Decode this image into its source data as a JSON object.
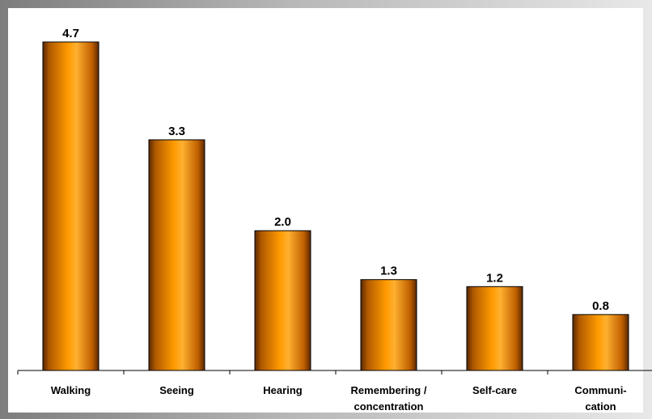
{
  "chart_data": {
    "type": "bar",
    "categories": [
      "Walking",
      "Seeing",
      "Hearing",
      "Remembering / concentration",
      "Self-care",
      "Communi-cation"
    ],
    "category_lines": [
      [
        "Walking"
      ],
      [
        "Seeing"
      ],
      [
        "Hearing"
      ],
      [
        "Remembering /",
        "concentration"
      ],
      [
        "Self-care"
      ],
      [
        "Communi-",
        "cation"
      ]
    ],
    "values": [
      4.7,
      3.3,
      2.0,
      1.3,
      1.2,
      0.8
    ],
    "data_labels": [
      "4.7",
      "3.3",
      "2.0",
      "1.3",
      "1.2",
      "0.8"
    ],
    "title": "",
    "xlabel": "",
    "ylabel": "",
    "ylim": [
      0,
      5.4
    ],
    "grid": false,
    "legend": "none",
    "bar_gradient": [
      "#5a2800",
      "#b05a00",
      "#ff9a00",
      "#ffb030",
      "#c06000",
      "#5a2800"
    ],
    "bar_outline_color": "#000000",
    "plot_background": "#ffffff",
    "frame_gradient": [
      "#7d7d7d",
      "#e8e8e8"
    ]
  }
}
